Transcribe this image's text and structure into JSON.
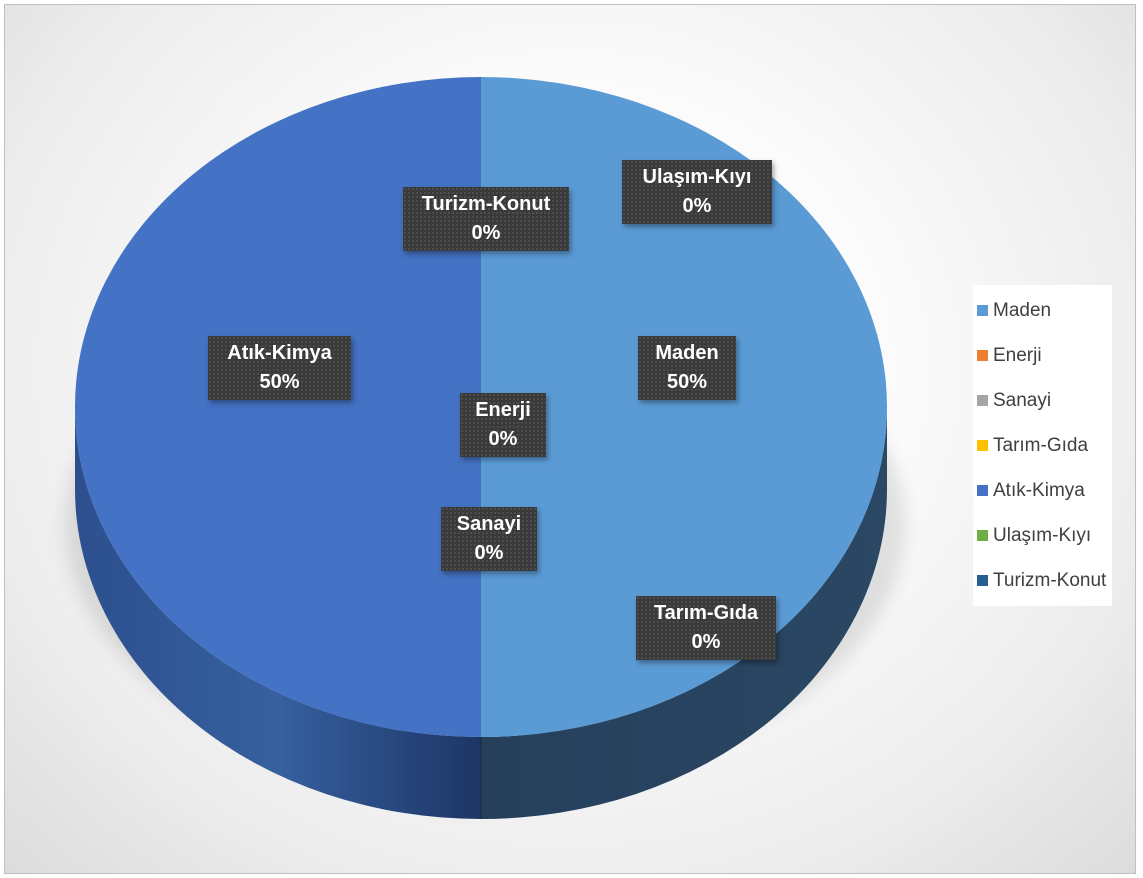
{
  "chart_data": {
    "type": "pie",
    "title": "",
    "categories": [
      "Maden",
      "Enerji",
      "Sanayi",
      "Tarım-Gıda",
      "Atık-Kimya",
      "Ulaşım-Kıyı",
      "Turizm-Konut"
    ],
    "values": [
      50,
      0,
      0,
      0,
      50,
      0,
      0
    ],
    "value_labels": [
      "50%",
      "0%",
      "0%",
      "0%",
      "50%",
      "0%",
      "0%"
    ],
    "colors": [
      "#5B9BD5",
      "#ED7D31",
      "#A5A5A5",
      "#FFC000",
      "#4472C4",
      "#70AD47",
      "#255E91"
    ],
    "legend_position": "right",
    "style": "3d",
    "data_labels": {
      "maden": {
        "name": "Maden",
        "value": "50%"
      },
      "enerji": {
        "name": "Enerji",
        "value": "0%"
      },
      "sanayi": {
        "name": "Sanayi",
        "value": "0%"
      },
      "tarim_gida": {
        "name": "Tarım-Gıda",
        "value": "0%"
      },
      "atik_kimya": {
        "name": "Atık-Kimya",
        "value": "50%"
      },
      "ulasim_kiyi": {
        "name": "Ulaşım-Kıyı",
        "value": "0%"
      },
      "turizm_konut": {
        "name": "Turizm-Konut",
        "value": "0%"
      }
    }
  },
  "legend": {
    "items": [
      {
        "label": "Maden",
        "color": "#5B9BD5"
      },
      {
        "label": "Enerji",
        "color": "#ED7D31"
      },
      {
        "label": "Sanayi",
        "color": "#A5A5A5"
      },
      {
        "label": "Tarım-Gıda",
        "color": "#FFC000"
      },
      {
        "label": "Atık-Kimya",
        "color": "#4472C4"
      },
      {
        "label": "Ulaşım-Kıyı",
        "color": "#70AD47"
      },
      {
        "label": "Turizm-Konut",
        "color": "#255E91"
      }
    ]
  }
}
